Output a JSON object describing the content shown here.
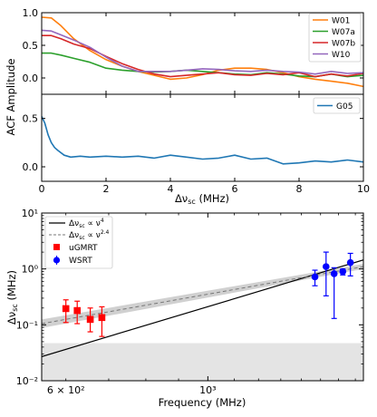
{
  "colors": {
    "W01": "#ff7f0e",
    "W07a": "#2ca02c",
    "W07b": "#d62728",
    "W10": "#9467bd",
    "G05": "#1f77b4",
    "uGMRT": "#ff0000",
    "WSRT": "#0000ff",
    "fit_solid": "#000000",
    "fit_dashed": "#777777",
    "band": "#c8c8c8",
    "shade": "#e4e4e4"
  },
  "chart_data": [
    {
      "type": "line",
      "panel": "top",
      "ylabel": "ACF Amplitude",
      "xlim": [
        0,
        10
      ],
      "ylim": [
        -0.25,
        1.0
      ],
      "yticks": [
        "1.0",
        "0.5",
        "0.0"
      ],
      "legend_placement": "top-right",
      "series": [
        {
          "name": "W01",
          "x": [
            0,
            0.3,
            0.6,
            1,
            1.5,
            2,
            2.5,
            3,
            3.5,
            4,
            4.5,
            5,
            5.5,
            6,
            6.5,
            7,
            7.5,
            8,
            8.5,
            9,
            9.5,
            10
          ],
          "y": [
            0.93,
            0.92,
            0.8,
            0.6,
            0.42,
            0.28,
            0.18,
            0.1,
            0.04,
            -0.02,
            0.0,
            0.05,
            0.12,
            0.15,
            0.15,
            0.13,
            0.08,
            0.02,
            -0.02,
            -0.05,
            -0.08,
            -0.13
          ]
        },
        {
          "name": "W07a",
          "x": [
            0,
            0.3,
            0.6,
            1,
            1.5,
            2,
            2.5,
            3,
            3.5,
            4,
            4.5,
            5,
            5.5,
            6,
            6.5,
            7,
            7.5,
            8,
            8.5,
            9,
            9.5,
            10
          ],
          "y": [
            0.38,
            0.38,
            0.35,
            0.3,
            0.24,
            0.15,
            0.12,
            0.1,
            0.09,
            0.1,
            0.12,
            0.1,
            0.08,
            0.06,
            0.05,
            0.08,
            0.06,
            0.03,
            0.02,
            0.06,
            0.02,
            0.04
          ]
        },
        {
          "name": "W07b",
          "x": [
            0,
            0.3,
            0.6,
            1,
            1.5,
            2,
            2.5,
            3,
            3.5,
            4,
            4.5,
            5,
            5.5,
            6,
            6.5,
            7,
            7.5,
            8,
            8.5,
            9,
            9.5,
            10
          ],
          "y": [
            0.65,
            0.65,
            0.6,
            0.52,
            0.45,
            0.33,
            0.22,
            0.13,
            0.06,
            0.02,
            0.04,
            0.06,
            0.08,
            0.05,
            0.04,
            0.07,
            0.05,
            0.08,
            0.02,
            0.06,
            0.03,
            0.07
          ]
        },
        {
          "name": "W10",
          "x": [
            0,
            0.3,
            0.6,
            1,
            1.5,
            2,
            2.5,
            3,
            3.5,
            4,
            4.5,
            5,
            5.5,
            6,
            6.5,
            7,
            7.5,
            8,
            8.5,
            9,
            9.5,
            10
          ],
          "y": [
            0.73,
            0.72,
            0.66,
            0.58,
            0.47,
            0.32,
            0.18,
            0.1,
            0.1,
            0.1,
            0.12,
            0.14,
            0.13,
            0.11,
            0.1,
            0.12,
            0.1,
            0.09,
            0.06,
            0.1,
            0.07,
            0.08
          ]
        }
      ]
    },
    {
      "type": "line",
      "panel": "middle",
      "xlabel": "Δν_sc (MHz)",
      "xlim": [
        0,
        10
      ],
      "ylim": [
        -0.15,
        0.75
      ],
      "xticks": [
        "0",
        "2",
        "4",
        "6",
        "8",
        "10"
      ],
      "yticks": [
        "0.5",
        "0.0"
      ],
      "legend_placement": "top-right",
      "series": [
        {
          "name": "G05",
          "x": [
            0,
            0.1,
            0.2,
            0.3,
            0.4,
            0.5,
            0.7,
            0.9,
            1.2,
            1.5,
            2,
            2.5,
            3,
            3.5,
            4,
            4.5,
            5,
            5.5,
            6,
            6.5,
            7,
            7.5,
            8,
            8.5,
            9,
            9.5,
            10
          ],
          "y": [
            0.52,
            0.45,
            0.33,
            0.25,
            0.2,
            0.17,
            0.12,
            0.1,
            0.11,
            0.1,
            0.11,
            0.1,
            0.11,
            0.09,
            0.12,
            0.1,
            0.08,
            0.09,
            0.12,
            0.08,
            0.09,
            0.03,
            0.04,
            0.06,
            0.05,
            0.07,
            0.05
          ]
        }
      ]
    },
    {
      "type": "scatter",
      "panel": "bottom",
      "xlabel": "Frequency (MHz)",
      "ylabel": "Δν_sc (MHz)",
      "xscale": "log",
      "yscale": "log",
      "xlim": [
        550,
        1750
      ],
      "ylim": [
        0.01,
        10
      ],
      "xticks": [
        "6 × 10²",
        "10³"
      ],
      "yticks": [
        "10¹",
        "10⁰",
        "10⁻¹",
        "10⁻²"
      ],
      "legend_placement": "top-left",
      "legend": [
        "Δν_sc ∝ ν⁴",
        "Δν_sc ∝ ν^2.4",
        "uGMRT",
        "WSRT"
      ],
      "fits": [
        {
          "name": "Δν_sc ∝ ν⁴",
          "style": "solid",
          "x": [
            550,
            1750
          ],
          "y": [
            0.027,
            1.45
          ]
        },
        {
          "name": "Δν_sc ∝ ν^2.4",
          "style": "dashed",
          "x": [
            550,
            1750
          ],
          "y": [
            0.105,
            1.1
          ],
          "band_low": [
            0.088,
            1.0
          ],
          "band_high": [
            0.125,
            1.23
          ]
        }
      ],
      "shaded_region": {
        "y": [
          0.01,
          0.047
        ]
      },
      "series": [
        {
          "name": "uGMRT",
          "marker": "square",
          "points": [
            {
              "x": 600,
              "y": 0.195,
              "ylo": 0.11,
              "yhi": 0.28
            },
            {
              "x": 625,
              "y": 0.18,
              "ylo": 0.105,
              "yhi": 0.265
            },
            {
              "x": 655,
              "y": 0.125,
              "ylo": 0.075,
              "yhi": 0.2
            },
            {
              "x": 683,
              "y": 0.135,
              "ylo": 0.062,
              "yhi": 0.21
            }
          ]
        },
        {
          "name": "WSRT",
          "marker": "circle",
          "points": [
            {
              "x": 1470,
              "y": 0.72,
              "ylo": 0.5,
              "yhi": 0.95
            },
            {
              "x": 1530,
              "y": 1.1,
              "ylo": 0.33,
              "yhi": 2.0
            },
            {
              "x": 1575,
              "y": 0.82,
              "ylo": 0.13,
              "yhi": 1.05
            },
            {
              "x": 1625,
              "y": 0.9,
              "ylo": 0.78,
              "yhi": 1.0
            },
            {
              "x": 1670,
              "y": 1.3,
              "ylo": 0.75,
              "yhi": 1.9
            }
          ]
        }
      ]
    }
  ]
}
